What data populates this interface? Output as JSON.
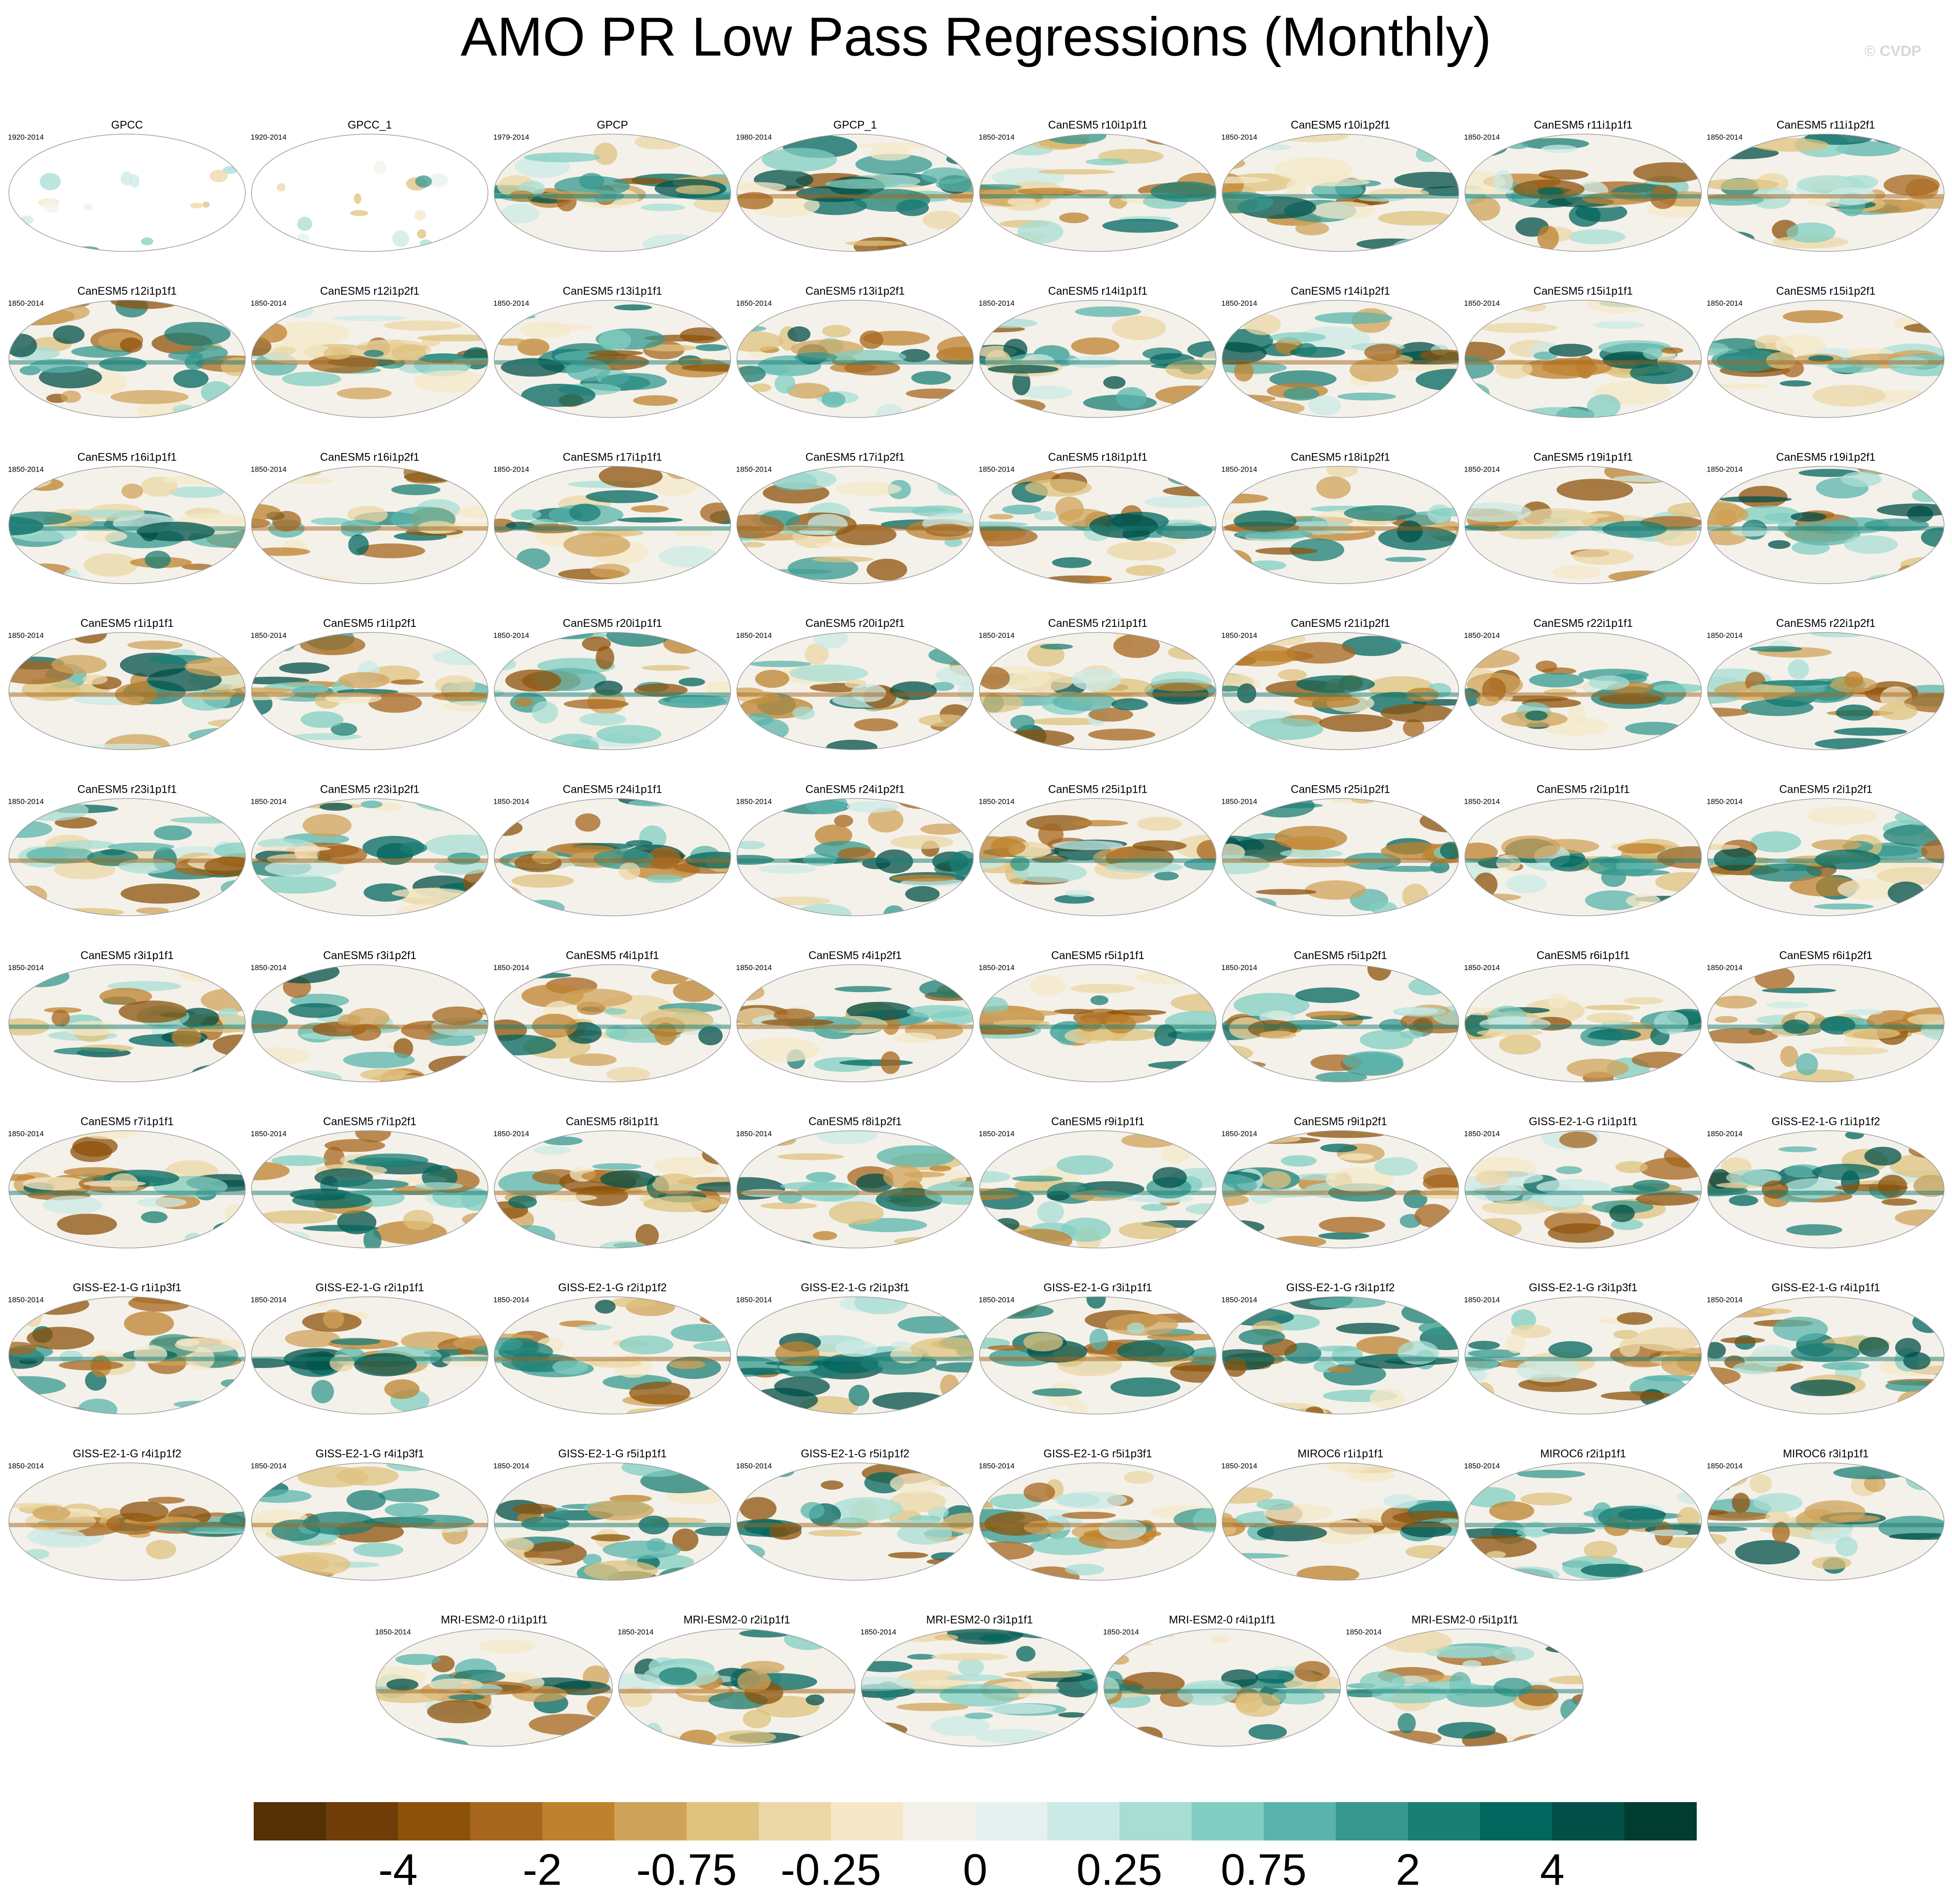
{
  "title": "AMO PR Low Pass Regressions (Monthly)",
  "watermark": "© CVDP",
  "panels": [
    {
      "label": "GPCC",
      "years": "1920-2014"
    },
    {
      "label": "GPCC_1",
      "years": "1920-2014"
    },
    {
      "label": "GPCP",
      "years": "1979-2014"
    },
    {
      "label": "GPCP_1",
      "years": "1980-2014"
    },
    {
      "label": "CanESM5 r10i1p1f1",
      "years": "1850-2014"
    },
    {
      "label": "CanESM5 r10i1p2f1",
      "years": "1850-2014"
    },
    {
      "label": "CanESM5 r11i1p1f1",
      "years": "1850-2014"
    },
    {
      "label": "CanESM5 r11i1p2f1",
      "years": "1850-2014"
    },
    {
      "label": "CanESM5 r12i1p1f1",
      "years": "1850-2014"
    },
    {
      "label": "CanESM5 r12i1p2f1",
      "years": "1850-2014"
    },
    {
      "label": "CanESM5 r13i1p1f1",
      "years": "1850-2014"
    },
    {
      "label": "CanESM5 r13i1p2f1",
      "years": "1850-2014"
    },
    {
      "label": "CanESM5 r14i1p1f1",
      "years": "1850-2014"
    },
    {
      "label": "CanESM5 r14i1p2f1",
      "years": "1850-2014"
    },
    {
      "label": "CanESM5 r15i1p1f1",
      "years": "1850-2014"
    },
    {
      "label": "CanESM5 r15i1p2f1",
      "years": "1850-2014"
    },
    {
      "label": "CanESM5 r16i1p1f1",
      "years": "1850-2014"
    },
    {
      "label": "CanESM5 r16i1p2f1",
      "years": "1850-2014"
    },
    {
      "label": "CanESM5 r17i1p1f1",
      "years": "1850-2014"
    },
    {
      "label": "CanESM5 r17i1p2f1",
      "years": "1850-2014"
    },
    {
      "label": "CanESM5 r18i1p1f1",
      "years": "1850-2014"
    },
    {
      "label": "CanESM5 r18i1p2f1",
      "years": "1850-2014"
    },
    {
      "label": "CanESM5 r19i1p1f1",
      "years": "1850-2014"
    },
    {
      "label": "CanESM5 r19i1p2f1",
      "years": "1850-2014"
    },
    {
      "label": "CanESM5 r1i1p1f1",
      "years": "1850-2014"
    },
    {
      "label": "CanESM5 r1i1p2f1",
      "years": "1850-2014"
    },
    {
      "label": "CanESM5 r20i1p1f1",
      "years": "1850-2014"
    },
    {
      "label": "CanESM5 r20i1p2f1",
      "years": "1850-2014"
    },
    {
      "label": "CanESM5 r21i1p1f1",
      "years": "1850-2014"
    },
    {
      "label": "CanESM5 r21i1p2f1",
      "years": "1850-2014"
    },
    {
      "label": "CanESM5 r22i1p1f1",
      "years": "1850-2014"
    },
    {
      "label": "CanESM5 r22i1p2f1",
      "years": "1850-2014"
    },
    {
      "label": "CanESM5 r23i1p1f1",
      "years": "1850-2014"
    },
    {
      "label": "CanESM5 r23i1p2f1",
      "years": "1850-2014"
    },
    {
      "label": "CanESM5 r24i1p1f1",
      "years": "1850-2014"
    },
    {
      "label": "CanESM5 r24i1p2f1",
      "years": "1850-2014"
    },
    {
      "label": "CanESM5 r25i1p1f1",
      "years": "1850-2014"
    },
    {
      "label": "CanESM5 r25i1p2f1",
      "years": "1850-2014"
    },
    {
      "label": "CanESM5 r2i1p1f1",
      "years": "1850-2014"
    },
    {
      "label": "CanESM5 r2i1p2f1",
      "years": "1850-2014"
    },
    {
      "label": "CanESM5 r3i1p1f1",
      "years": "1850-2014"
    },
    {
      "label": "CanESM5 r3i1p2f1",
      "years": "1850-2014"
    },
    {
      "label": "CanESM5 r4i1p1f1",
      "years": "1850-2014"
    },
    {
      "label": "CanESM5 r4i1p2f1",
      "years": "1850-2014"
    },
    {
      "label": "CanESM5 r5i1p1f1",
      "years": "1850-2014"
    },
    {
      "label": "CanESM5 r5i1p2f1",
      "years": "1850-2014"
    },
    {
      "label": "CanESM5 r6i1p1f1",
      "years": "1850-2014"
    },
    {
      "label": "CanESM5 r6i1p2f1",
      "years": "1850-2014"
    },
    {
      "label": "CanESM5 r7i1p1f1",
      "years": "1850-2014"
    },
    {
      "label": "CanESM5 r7i1p2f1",
      "years": "1850-2014"
    },
    {
      "label": "CanESM5 r8i1p1f1",
      "years": "1850-2014"
    },
    {
      "label": "CanESM5 r8i1p2f1",
      "years": "1850-2014"
    },
    {
      "label": "CanESM5 r9i1p1f1",
      "years": "1850-2014"
    },
    {
      "label": "CanESM5 r9i1p2f1",
      "years": "1850-2014"
    },
    {
      "label": "GISS-E2-1-G r1i1p1f1",
      "years": "1850-2014"
    },
    {
      "label": "GISS-E2-1-G r1i1p1f2",
      "years": "1850-2014"
    },
    {
      "label": "GISS-E2-1-G r1i1p3f1",
      "years": "1850-2014"
    },
    {
      "label": "GISS-E2-1-G r2i1p1f1",
      "years": "1850-2014"
    },
    {
      "label": "GISS-E2-1-G r2i1p1f2",
      "years": "1850-2014"
    },
    {
      "label": "GISS-E2-1-G r2i1p3f1",
      "years": "1850-2014"
    },
    {
      "label": "GISS-E2-1-G r3i1p1f1",
      "years": "1850-2014"
    },
    {
      "label": "GISS-E2-1-G r3i1p1f2",
      "years": "1850-2014"
    },
    {
      "label": "GISS-E2-1-G r3i1p3f1",
      "years": "1850-2014"
    },
    {
      "label": "GISS-E2-1-G r4i1p1f1",
      "years": "1850-2014"
    },
    {
      "label": "GISS-E2-1-G r4i1p1f2",
      "years": "1850-2014"
    },
    {
      "label": "GISS-E2-1-G r4i1p3f1",
      "years": "1850-2014"
    },
    {
      "label": "GISS-E2-1-G r5i1p1f1",
      "years": "1850-2014"
    },
    {
      "label": "GISS-E2-1-G r5i1p1f2",
      "years": "1850-2014"
    },
    {
      "label": "GISS-E2-1-G r5i1p3f1",
      "years": "1850-2014"
    },
    {
      "label": "MIROC6 r1i1p1f1",
      "years": "1850-2014"
    },
    {
      "label": "MIROC6 r2i1p1f1",
      "years": "1850-2014"
    },
    {
      "label": "MIROC6 r3i1p1f1",
      "years": "1850-2014"
    },
    {
      "label": "MRI-ESM2-0 r1i1p1f1",
      "years": "1850-2014"
    },
    {
      "label": "MRI-ESM2-0 r2i1p1f1",
      "years": "1850-2014"
    },
    {
      "label": "MRI-ESM2-0 r3i1p1f1",
      "years": "1850-2014"
    },
    {
      "label": "MRI-ESM2-0 r4i1p1f1",
      "years": "1850-2014"
    },
    {
      "label": "MRI-ESM2-0 r5i1p1f1",
      "years": "1850-2014"
    }
  ],
  "colorbar": {
    "colors": [
      "#543005",
      "#6f3d08",
      "#8c510a",
      "#a6661e",
      "#bf812d",
      "#d0a35a",
      "#dfc27d",
      "#ecd7a6",
      "#f4e8c8",
      "#f4f1ea",
      "#e6f1ef",
      "#cceae5",
      "#a8ddd4",
      "#82cdc1",
      "#5ab4ac",
      "#36988f",
      "#1b7e74",
      "#01665e",
      "#014f47",
      "#003c30"
    ],
    "labels": [
      -4,
      -2,
      -0.75,
      -0.25,
      0,
      0.25,
      0.75,
      2,
      4
    ]
  }
}
